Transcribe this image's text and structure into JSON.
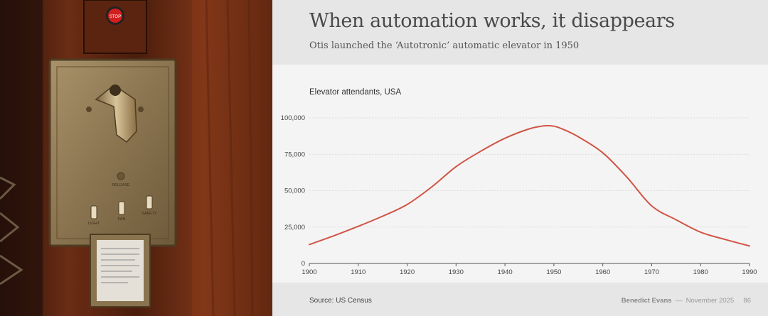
{
  "photo": {
    "stop_label": "STOP",
    "plate_labels": [
      "RELEASE",
      "LIGHT",
      "FAN",
      "SAFETY"
    ]
  },
  "header": {
    "title": "When automation works, it disappears",
    "subtitle": "Otis launched the ‘Autotronic’ automatic elevator in 1950"
  },
  "chart_data": {
    "type": "line",
    "title": "Elevator attendants, USA",
    "x": [
      1900,
      1905,
      1910,
      1915,
      1920,
      1925,
      1930,
      1935,
      1940,
      1945,
      1948,
      1950,
      1952,
      1955,
      1960,
      1965,
      1970,
      1975,
      1980,
      1985,
      1990
    ],
    "series": [
      {
        "name": "Elevator attendants",
        "color": "#d05545",
        "values": [
          13000,
          19000,
          25500,
          32500,
          40500,
          52500,
          66500,
          77000,
          86000,
          92500,
          94500,
          94300,
          92000,
          87000,
          76000,
          59000,
          39500,
          30000,
          21500,
          16500,
          12000
        ]
      }
    ],
    "xticks": [
      1900,
      1910,
      1920,
      1930,
      1940,
      1950,
      1960,
      1970,
      1980,
      1990
    ],
    "yticks": [
      0,
      25000,
      50000,
      75000,
      100000
    ],
    "ytick_labels": [
      "0",
      "25,000",
      "50,000",
      "75,000",
      "100,000"
    ],
    "xlim": [
      1900,
      1990
    ],
    "ylim": [
      0,
      100000
    ],
    "grid": true,
    "xlabel": "",
    "ylabel": ""
  },
  "footer": {
    "source": "Source: US Census",
    "author": "Benedict Evans",
    "separator": "—",
    "date": "November 2025",
    "page": "86"
  }
}
